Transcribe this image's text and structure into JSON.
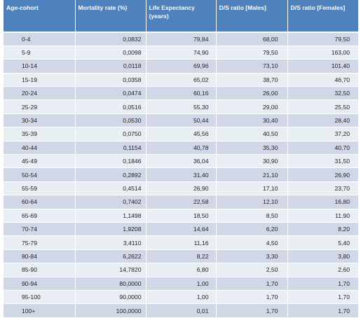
{
  "table": {
    "headers": [
      "Age-cohort",
      "Mortality rate (%)",
      "Life Expectancy (years)",
      "D/S ratio [Males]",
      "D/S ratio [Females]"
    ],
    "rows": [
      [
        "0-4",
        "0,0832",
        "79,84",
        "68,00",
        "79,50"
      ],
      [
        "5-9",
        "0,0098",
        "74,90",
        "79,50",
        "163,00"
      ],
      [
        "10-14",
        "0,0118",
        "69,96",
        "73,10",
        "101,40"
      ],
      [
        "15-19",
        "0,0358",
        "65,02",
        "38,70",
        "46,70"
      ],
      [
        "20-24",
        "0,0474",
        "60,16",
        "26,00",
        "32,50"
      ],
      [
        "25-29",
        "0,0516",
        "55,30",
        "29,00",
        "25,50"
      ],
      [
        "30-34",
        "0,0530",
        "50,44",
        "30,40",
        "28,40"
      ],
      [
        "35-39",
        "0,0750",
        "45,56",
        "40,50",
        "37,20"
      ],
      [
        "40-44",
        "0,1154",
        "40,78",
        "35,30",
        "40,70"
      ],
      [
        "45-49",
        "0,1846",
        "36,04",
        "30,90",
        "31,50"
      ],
      [
        "50-54",
        "0,2892",
        "31,40",
        "21,10",
        "26,90"
      ],
      [
        "55-59",
        "0,4514",
        "26,90",
        "17,10",
        "23,70"
      ],
      [
        "60-64",
        "0,7402",
        "22,58",
        "12,10",
        "16,80"
      ],
      [
        "65-69",
        "1,1498",
        "18,50",
        "8,50",
        "11,90"
      ],
      [
        "70-74",
        "1,9208",
        "14,64",
        "6,20",
        "8,20"
      ],
      [
        "75-79",
        "3,4110",
        "11,16",
        "4,50",
        "5,40"
      ],
      [
        "80-84",
        "6,2622",
        "8,22",
        "3,30",
        "3,80"
      ],
      [
        "85-90",
        "14,7820",
        "6,80",
        "2,50",
        "2,60"
      ],
      [
        "90-94",
        "80,0000",
        "1,00",
        "1,70",
        "1,70"
      ],
      [
        "95-100",
        "90,0000",
        "1,00",
        "1,70",
        "1,70"
      ],
      [
        "100+",
        "100,0000",
        "0,01",
        "1,70",
        "1,70"
      ]
    ]
  },
  "colors": {
    "header_bg": "#4f81bd",
    "row_dark": "#d0d8e8",
    "row_light": "#e9edf4"
  }
}
